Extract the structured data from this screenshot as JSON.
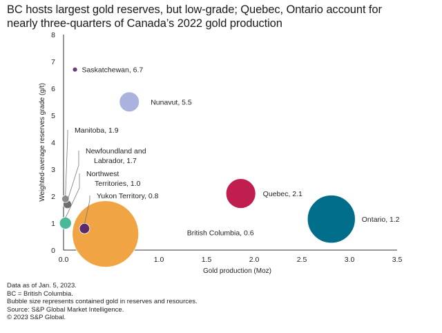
{
  "title": {
    "line1": "BC hosts largest gold reserves, but low-grade; Quebec, Ontario account for",
    "line2": "nearly three-quarters of Canada’s 2022 gold production"
  },
  "chart_data": {
    "type": "scatter",
    "title": "BC hosts largest gold reserves, but low-grade; Quebec, Ontario account for nearly three-quarters of Canada’s 2022 gold production",
    "xlabel": "Gold production (Moz)",
    "ylabel": "Weighted-average reserves grade (g/t)",
    "xlim": [
      0,
      3.5
    ],
    "ylim": [
      0,
      8
    ],
    "x_ticks": [
      "0.0",
      "0.5",
      "1.0",
      "1.5",
      "2.0",
      "2.5",
      "3.0",
      "3.5"
    ],
    "y_ticks": [
      "0",
      "1",
      "2",
      "3",
      "4",
      "5",
      "6",
      "7",
      "8"
    ],
    "grid": false,
    "points": [
      {
        "name": "Saskatchewan",
        "label": "Saskatchewan, 6.7",
        "x": 0.12,
        "y": 6.7,
        "size": 0.5,
        "color": "#6b3d7d"
      },
      {
        "name": "Nunavut",
        "label": "Nunavut, 5.5",
        "x": 0.69,
        "y": 5.5,
        "size": 9,
        "color": "#a9b3de"
      },
      {
        "name": "Manitoba",
        "label": "Manitoba, 1.9",
        "x": 0.02,
        "y": 1.9,
        "size": 1.2,
        "color": "#8a8a8a"
      },
      {
        "name": "Newfoundland and Labrador",
        "label_lines": [
          "Newfoundland and",
          "Labrador, 1.7"
        ],
        "x": 0.04,
        "y": 1.7,
        "size": 1.6,
        "color": "#6e6e6e"
      },
      {
        "name": "Northwest Territories",
        "label_lines": [
          "Northwest",
          "Territories, 1.0"
        ],
        "x": 0.02,
        "y": 1.0,
        "size": 3.2,
        "color": "#4bb89a"
      },
      {
        "name": "Yukon Territory",
        "label": "Yukon Territory, 0.8",
        "x": 0.22,
        "y": 0.8,
        "size": 2.4,
        "color": "#5a2a6e"
      },
      {
        "name": "British Columbia",
        "label": "British Columbia, 0.6",
        "x": 0.44,
        "y": 0.6,
        "size": 100,
        "color": "#f0a443"
      },
      {
        "name": "Quebec",
        "label": "Quebec, 2.1",
        "x": 1.86,
        "y": 2.1,
        "size": 20,
        "color": "#c01e4f"
      },
      {
        "name": "Ontario",
        "label": "Ontario, 1.2",
        "x": 2.81,
        "y": 1.15,
        "size": 52,
        "color": "#006d8a"
      }
    ]
  },
  "notes": [
    "Data as of Jan. 5, 2023.",
    "BC = British Columbia.",
    "Bubble size represents contained gold in reserves and resources.",
    "Source: S&P Global Market Intelligence.",
    "© 2023 S&P Global."
  ]
}
